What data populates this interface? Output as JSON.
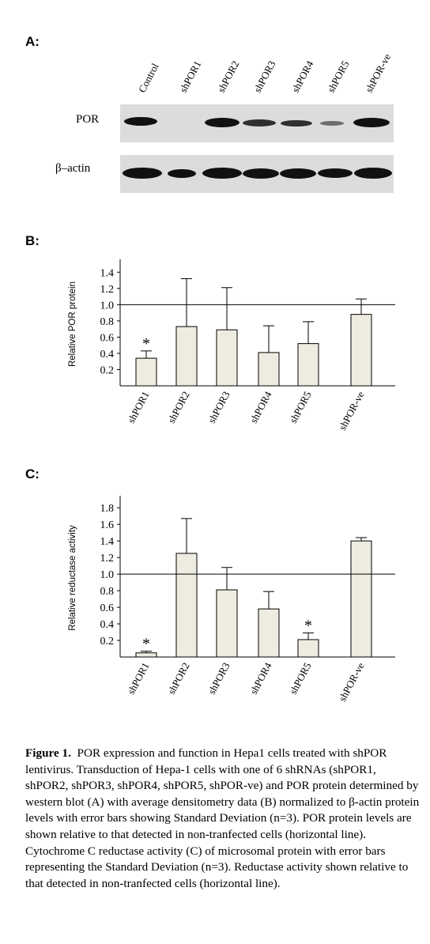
{
  "panel_a": {
    "letter": "A:",
    "lanes": [
      "Control",
      "shPOR1",
      "shPOR2",
      "shPOR3",
      "shPOR4",
      "shPOR5",
      "shPOR-ve"
    ],
    "row_labels": [
      "POR",
      "β–actin"
    ]
  },
  "panel_b": {
    "letter": "B:"
  },
  "panel_c": {
    "letter": "C:"
  },
  "chart_data": [
    {
      "type": "bar",
      "ylabel": "Relative POR protein",
      "categories": [
        "shPOR1",
        "shPOR2",
        "shPOR3",
        "shPOR4",
        "shPOR5",
        "shPOR-ve"
      ],
      "values": [
        0.34,
        0.73,
        0.69,
        0.41,
        0.52,
        0.88
      ],
      "error": [
        0.09,
        0.59,
        0.52,
        0.33,
        0.27,
        0.19
      ],
      "significance": [
        "*",
        "",
        "",
        "",
        "",
        ""
      ],
      "reference_line": 1.0,
      "yticks": [
        "0.2",
        "0.4",
        "0.6",
        "0.8",
        "1.0",
        "1.2",
        "1.4"
      ],
      "ylim": [
        0.0,
        1.5
      ]
    },
    {
      "type": "bar",
      "ylabel": "Relative reductase activity",
      "categories": [
        "shPOR1",
        "shPOR2",
        "shPOR3",
        "shPOR4",
        "shPOR5",
        "shPOR-ve"
      ],
      "values": [
        0.05,
        1.25,
        0.81,
        0.58,
        0.21,
        1.4
      ],
      "error": [
        0.02,
        0.42,
        0.27,
        0.21,
        0.08,
        0.04
      ],
      "significance": [
        "*",
        "",
        "",
        "",
        "*",
        ""
      ],
      "reference_line": 1.0,
      "yticks": [
        "0.2",
        "0.4",
        "0.6",
        "0.8",
        "1.0",
        "1.2",
        "1.4",
        "1.6",
        "1.8"
      ],
      "ylim": [
        0.0,
        1.85
      ]
    }
  ],
  "caption": {
    "label": "Figure 1.",
    "text": "POR expression and function in Hepa1 cells treated with shPOR lentivirus. Transduction of Hepa-1 cells with one of 6 shRNAs (shPOR1, shPOR2, shPOR3, shPOR4, shPOR5, shPOR-ve) and POR protein determined by western blot (A) with average densitometry data (B) normalized to β-actin protein levels with error bars showing Standard Deviation (n=3). POR protein levels are shown relative to that detected in non-tranfected cells (horizontal line). Cytochrome C reductase activity (C) of microsomal protein with error bars representing the Standard Deviation (n=3). Reductase activity shown relative to that detected in non-tranfected cells (horizontal line)."
  },
  "colors": {
    "bar_fill": "#eeece0",
    "blot_bg": "#dcdcdc",
    "band": "#111111"
  }
}
